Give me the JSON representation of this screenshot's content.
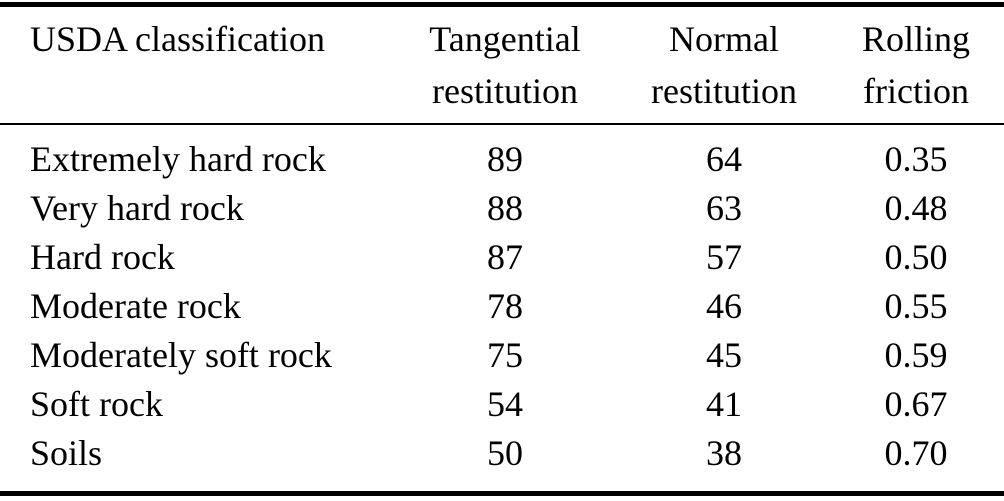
{
  "table": {
    "header": [
      {
        "line1": "USDA classification",
        "line2": ""
      },
      {
        "line1": "Tangential",
        "line2": "restitution"
      },
      {
        "line1": "Normal",
        "line2": "restitution"
      },
      {
        "line1": "Rolling",
        "line2": "friction"
      }
    ],
    "rows": [
      [
        "Extremely hard rock",
        "89",
        "64",
        "0.35"
      ],
      [
        "Very hard rock",
        "88",
        "63",
        "0.48"
      ],
      [
        "Hard rock",
        "87",
        "57",
        "0.50"
      ],
      [
        "Moderate rock",
        "78",
        "46",
        "0.55"
      ],
      [
        "Moderately soft rock",
        "75",
        "45",
        "0.59"
      ],
      [
        "Soft rock",
        "54",
        "41",
        "0.67"
      ],
      [
        "Soils",
        "50",
        "38",
        "0.70"
      ]
    ],
    "colors": {
      "text": "#000000",
      "background": "#ffffff",
      "rule": "#000000"
    }
  }
}
